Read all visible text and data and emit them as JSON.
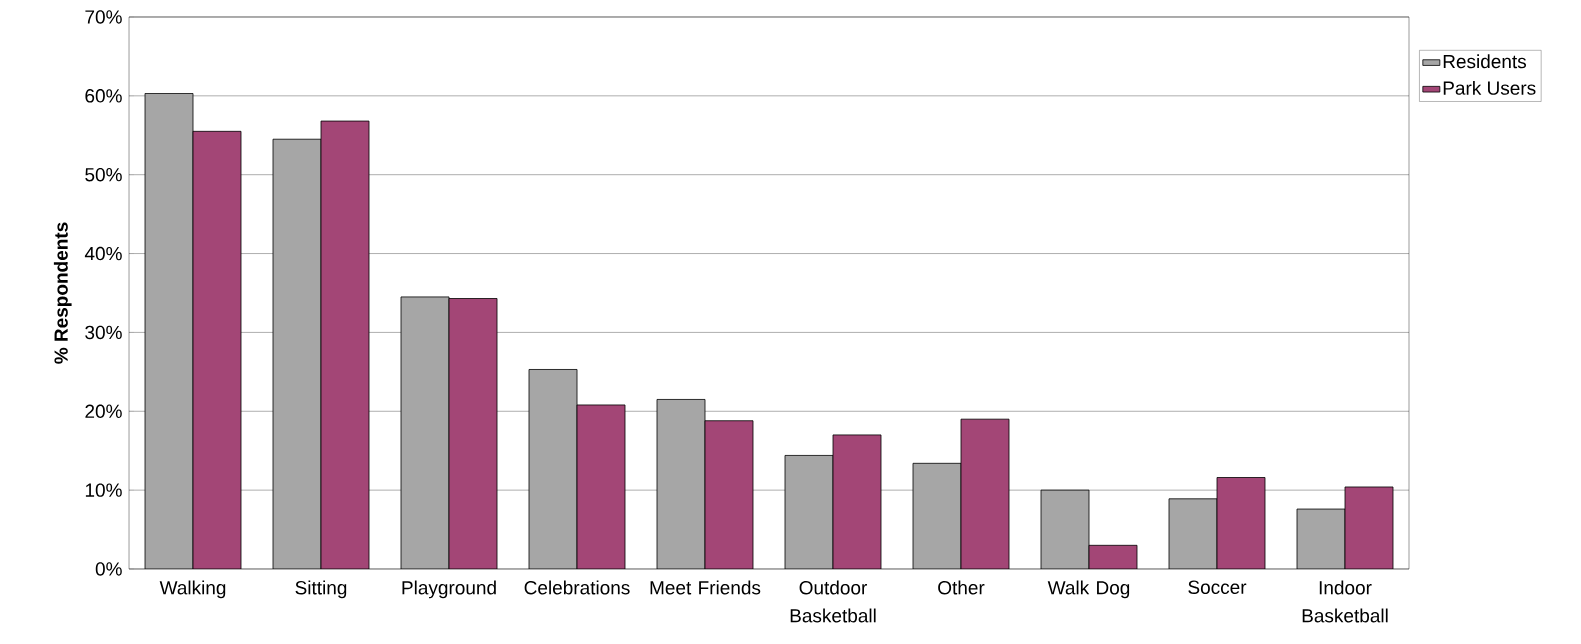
{
  "chart_data": {
    "type": "bar",
    "ylabel": "% Respondents",
    "categories": [
      "Walking",
      "Sitting",
      "Playground",
      "Celebrations",
      "Meet Friends",
      "Outdoor Basketball",
      "Other",
      "Walk Dog",
      "Soccer",
      "Indoor Basketball"
    ],
    "series": [
      {
        "name": "Residents",
        "color": "#a6a6a6",
        "values": [
          60.3,
          54.5,
          34.5,
          25.3,
          21.5,
          14.4,
          13.4,
          10.0,
          8.9,
          7.6
        ]
      },
      {
        "name": "Park Users",
        "color": "#a34676",
        "values": [
          55.5,
          56.8,
          34.3,
          20.8,
          18.8,
          17.0,
          19.0,
          3.0,
          11.6,
          10.4
        ]
      }
    ],
    "ylim": [
      0,
      70
    ],
    "yticks": [
      {
        "value": 0,
        "label": "0%"
      },
      {
        "value": 10,
        "label": "10%"
      },
      {
        "value": 20,
        "label": "20%"
      },
      {
        "value": 30,
        "label": "30%"
      },
      {
        "value": 40,
        "label": "40%"
      },
      {
        "value": 50,
        "label": "50%"
      },
      {
        "value": 60,
        "label": "60%"
      },
      {
        "value": 70,
        "label": "70%"
      }
    ],
    "grid": "y",
    "legend": "top right"
  }
}
